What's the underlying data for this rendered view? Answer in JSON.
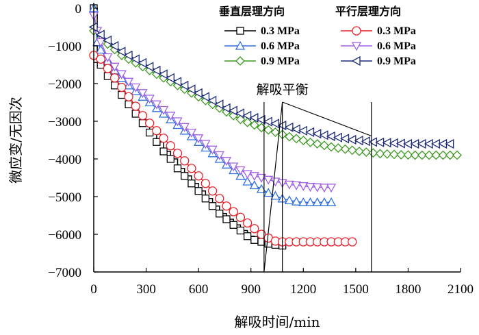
{
  "chart_data": {
    "type": "line",
    "title": "",
    "xlabel": "解吸时间/min",
    "ylabel": "微应变/无因次",
    "xlim": [
      0,
      2100
    ],
    "ylim": [
      -7000,
      0
    ],
    "xticks": [
      0,
      300,
      600,
      900,
      1200,
      1500,
      1800,
      2100
    ],
    "yticks": [
      0,
      -1000,
      -2000,
      -3000,
      -4000,
      -5000,
      -6000,
      -7000
    ],
    "legend_groups": [
      "垂直层理方向",
      "平行层理方向"
    ],
    "annotation": "解吸平衡",
    "series": [
      {
        "name": "0.3 MPa",
        "group": "垂直层理方向",
        "color": "#000000",
        "marker": "square",
        "x": [
          0,
          20,
          40,
          80,
          120,
          160,
          200,
          240,
          280,
          320,
          360,
          400,
          440,
          480,
          520,
          560,
          600,
          640,
          680,
          720,
          760,
          800,
          840,
          880,
          920,
          960,
          1000,
          1040,
          1080
        ],
        "y": [
          0,
          -1350,
          -1500,
          -1800,
          -2050,
          -2300,
          -2550,
          -2800,
          -3050,
          -3300,
          -3550,
          -3800,
          -4000,
          -4250,
          -4450,
          -4650,
          -4850,
          -5050,
          -5250,
          -5450,
          -5600,
          -5750,
          -5900,
          -6050,
          -6150,
          -6200,
          -6250,
          -6280,
          -6300
        ]
      },
      {
        "name": "0.6 MPa",
        "group": "垂直层理方向",
        "color": "#2f6fe0",
        "marker": "triangle-up",
        "x": [
          0,
          20,
          40,
          80,
          120,
          160,
          200,
          240,
          280,
          320,
          360,
          400,
          440,
          480,
          520,
          560,
          600,
          640,
          680,
          720,
          760,
          800,
          840,
          880,
          920,
          960,
          1000,
          1040,
          1080,
          1120,
          1160,
          1200,
          1240,
          1280,
          1320,
          1360
        ],
        "y": [
          0,
          -900,
          -1100,
          -1400,
          -1650,
          -1850,
          -2050,
          -2200,
          -2350,
          -2500,
          -2650,
          -2800,
          -2950,
          -3100,
          -3250,
          -3400,
          -3550,
          -3700,
          -3850,
          -4000,
          -4150,
          -4300,
          -4450,
          -4600,
          -4700,
          -4800,
          -4900,
          -4980,
          -5050,
          -5100,
          -5130,
          -5150,
          -5150,
          -5150,
          -5150,
          -5150
        ]
      },
      {
        "name": "0.9 MPa",
        "group": "垂直层理方向",
        "color": "#3a9a1e",
        "marker": "diamond",
        "x": [
          0,
          40,
          80,
          120,
          160,
          200,
          240,
          280,
          320,
          360,
          400,
          440,
          480,
          520,
          560,
          600,
          640,
          680,
          720,
          760,
          800,
          840,
          880,
          920,
          960,
          1000,
          1040,
          1080,
          1120,
          1160,
          1200,
          1240,
          1280,
          1320,
          1360,
          1400,
          1440,
          1480,
          1520,
          1560,
          1600,
          1640,
          1680,
          1720,
          1760,
          1800,
          1840,
          1880,
          1920,
          1960,
          2000,
          2040,
          2080
        ],
        "y": [
          -600,
          -800,
          -950,
          -1100,
          -1250,
          -1350,
          -1450,
          -1550,
          -1650,
          -1750,
          -1850,
          -1950,
          -2050,
          -2150,
          -2250,
          -2350,
          -2450,
          -2550,
          -2650,
          -2750,
          -2850,
          -2950,
          -3030,
          -3100,
          -3170,
          -3230,
          -3290,
          -3350,
          -3410,
          -3460,
          -3510,
          -3560,
          -3600,
          -3640,
          -3680,
          -3710,
          -3740,
          -3770,
          -3800,
          -3820,
          -3840,
          -3860,
          -3870,
          -3880,
          -3890,
          -3895,
          -3900,
          -3900,
          -3900,
          -3900,
          -3900,
          -3900,
          -3900
        ]
      },
      {
        "name": "0.3 MPa",
        "group": "平行层理方向",
        "color": "#e8202a",
        "marker": "circle",
        "x": [
          0,
          40,
          80,
          120,
          160,
          200,
          240,
          280,
          320,
          360,
          400,
          440,
          480,
          520,
          560,
          600,
          640,
          680,
          720,
          760,
          800,
          840,
          880,
          920,
          960,
          1000,
          1040,
          1080,
          1120,
          1160,
          1200,
          1240,
          1280,
          1320,
          1360,
          1400,
          1440,
          1480
        ],
        "y": [
          -1250,
          -1350,
          -1600,
          -1850,
          -2100,
          -2350,
          -2600,
          -2850,
          -3050,
          -3250,
          -3450,
          -3650,
          -3850,
          -4050,
          -4250,
          -4450,
          -4650,
          -4850,
          -5050,
          -5250,
          -5400,
          -5550,
          -5700,
          -5850,
          -6000,
          -6100,
          -6180,
          -6200,
          -6200,
          -6200,
          -6200,
          -6200,
          -6200,
          -6200,
          -6200,
          -6200,
          -6200,
          -6200
        ]
      },
      {
        "name": "0.6 MPa",
        "group": "平行层理方向",
        "color": "#a15fe6",
        "marker": "triangle-down",
        "x": [
          0,
          20,
          40,
          80,
          120,
          160,
          200,
          240,
          280,
          320,
          360,
          400,
          440,
          480,
          520,
          560,
          600,
          640,
          680,
          720,
          760,
          800,
          840,
          880,
          920,
          960,
          1000,
          1040,
          1080,
          1120,
          1160,
          1200,
          1240,
          1280,
          1320,
          1360
        ],
        "y": [
          -200,
          -600,
          -900,
          -1300,
          -1550,
          -1750,
          -1950,
          -2100,
          -2250,
          -2400,
          -2550,
          -2700,
          -2850,
          -3000,
          -3150,
          -3300,
          -3450,
          -3600,
          -3750,
          -3900,
          -4050,
          -4200,
          -4300,
          -4400,
          -4450,
          -4500,
          -4550,
          -4600,
          -4640,
          -4680,
          -4700,
          -4720,
          -4740,
          -4750,
          -4760,
          -4760
        ]
      },
      {
        "name": "0.9 MPa",
        "group": "平行层理方向",
        "color": "#1c2a78",
        "marker": "triangle-left",
        "x": [
          0,
          40,
          80,
          120,
          160,
          200,
          240,
          280,
          320,
          360,
          400,
          440,
          480,
          520,
          560,
          600,
          640,
          680,
          720,
          760,
          800,
          840,
          880,
          920,
          960,
          1000,
          1040,
          1080,
          1120,
          1160,
          1200,
          1240,
          1280,
          1320,
          1360,
          1400,
          1440,
          1480,
          1520,
          1560,
          1600,
          1640,
          1680,
          1720,
          1760,
          1800,
          1840,
          1880,
          1920,
          1960,
          2000,
          2040
        ],
        "y": [
          -500,
          -700,
          -850,
          -1000,
          -1150,
          -1250,
          -1350,
          -1450,
          -1550,
          -1650,
          -1750,
          -1850,
          -1950,
          -2050,
          -2150,
          -2250,
          -2350,
          -2450,
          -2550,
          -2650,
          -2720,
          -2790,
          -2850,
          -2910,
          -2960,
          -3010,
          -3060,
          -3110,
          -3160,
          -3210,
          -3250,
          -3290,
          -3330,
          -3370,
          -3400,
          -3430,
          -3460,
          -3490,
          -3510,
          -3530,
          -3550,
          -3560,
          -3570,
          -3580,
          -3590,
          -3600,
          -3600,
          -3600,
          -3600,
          -3600,
          -3600,
          -3600
        ]
      }
    ]
  }
}
